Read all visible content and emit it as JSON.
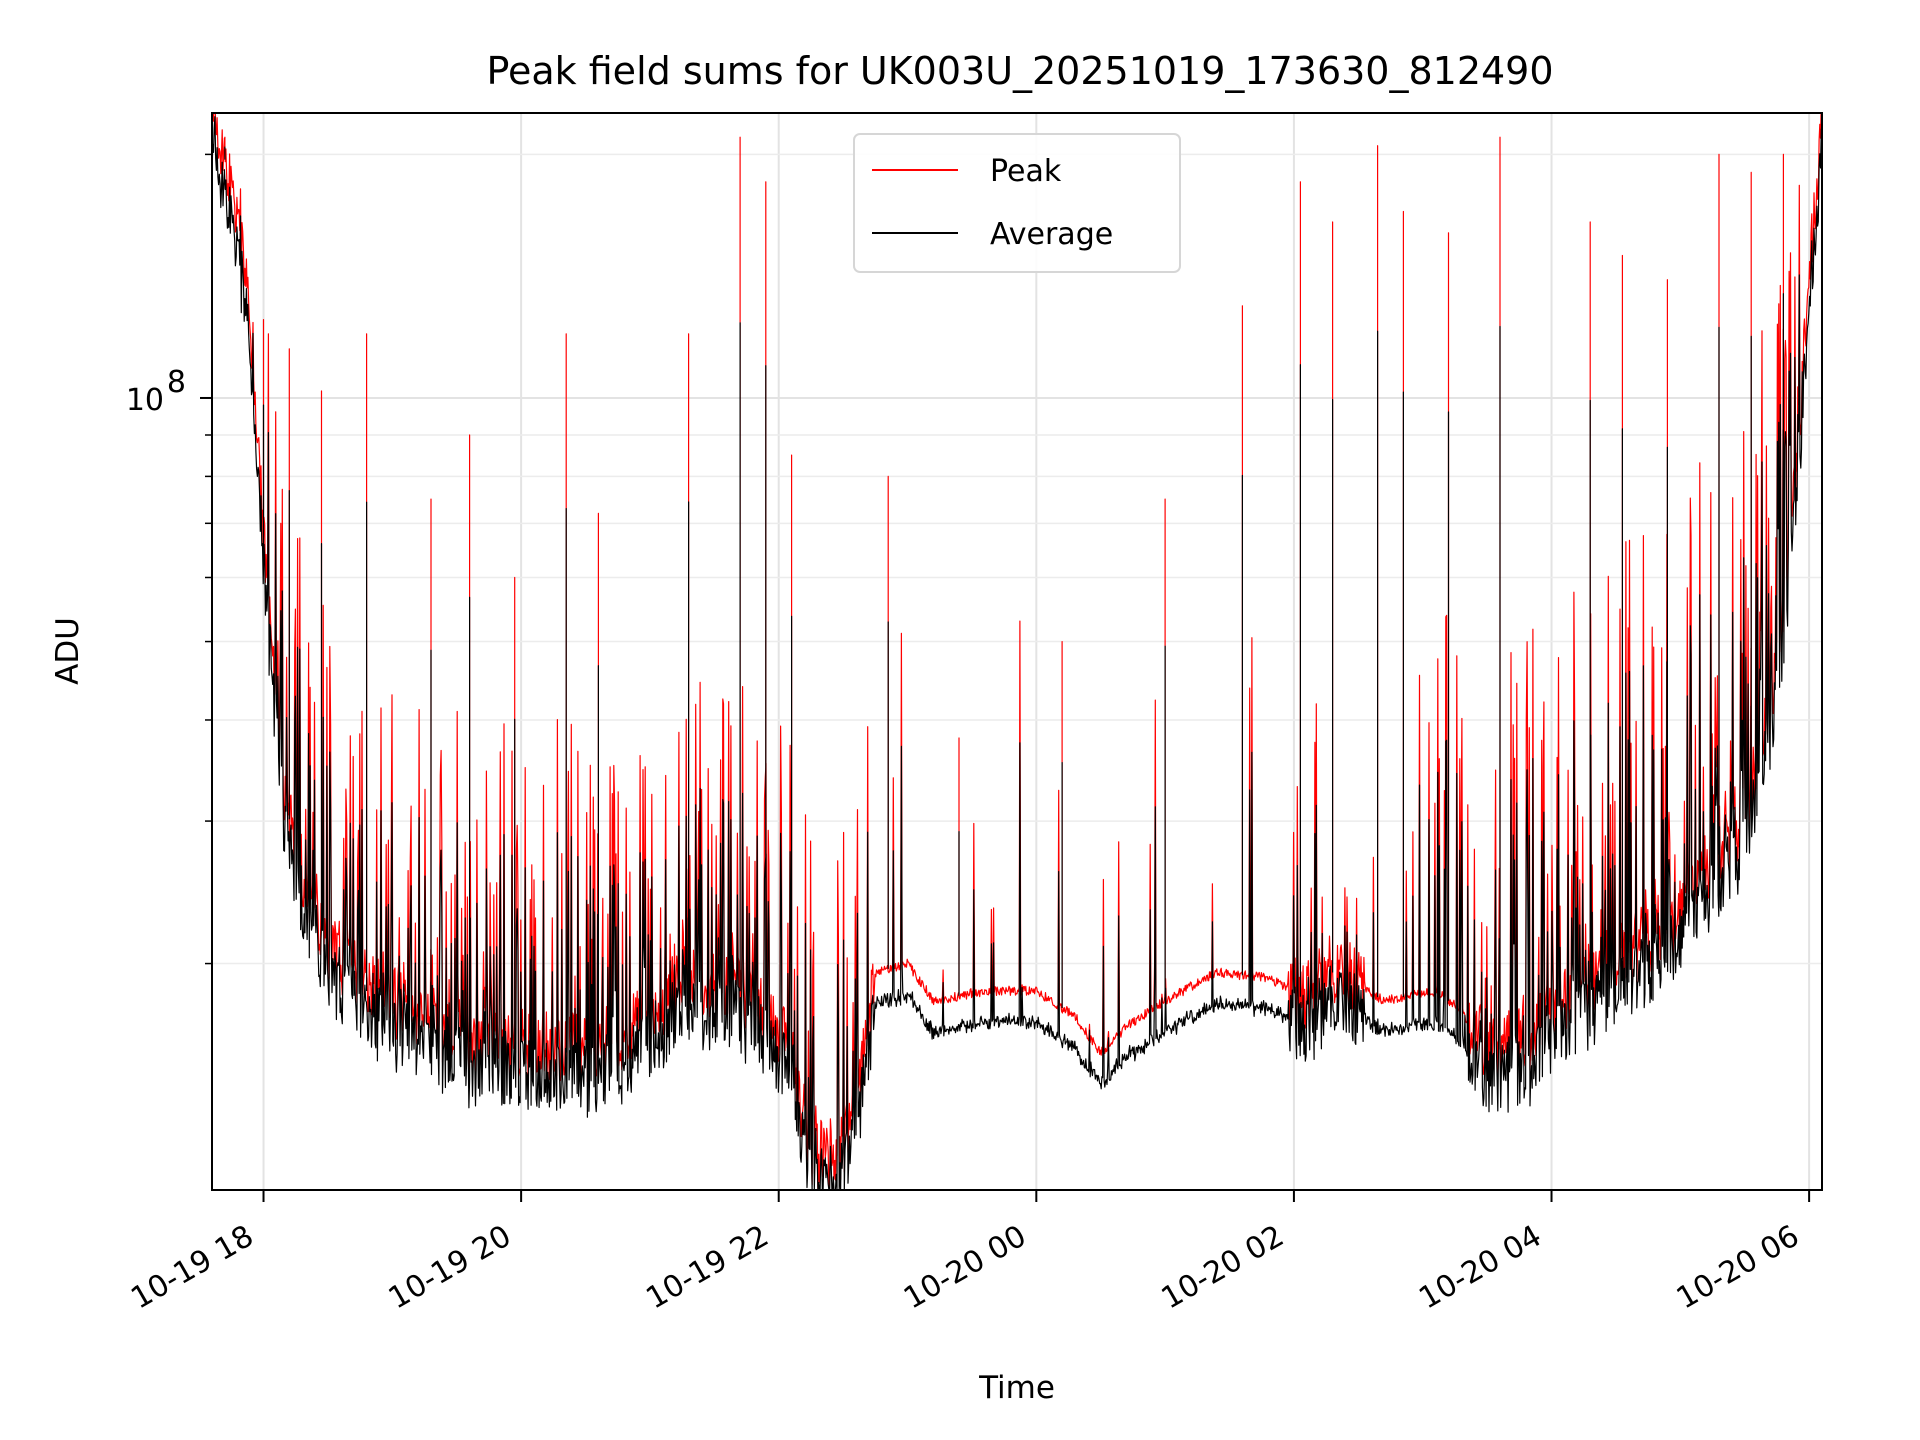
{
  "chart_data": {
    "type": "line",
    "title": "Peak field sums for UK003U_20251019_173630_812490",
    "xlabel": "Time",
    "ylabel": "ADU",
    "yscale": "log",
    "ylim": [
      10500000,
      225000000
    ],
    "xlim_hours_since_1019_1700": [
      0.6,
      13.1
    ],
    "x_ticks": [
      {
        "label": "10-19 18",
        "hours": 1
      },
      {
        "label": "10-19 20",
        "hours": 3
      },
      {
        "label": "10-19 22",
        "hours": 5
      },
      {
        "label": "10-20 00",
        "hours": 7
      },
      {
        "label": "10-20 02",
        "hours": 9
      },
      {
        "label": "10-20 04",
        "hours": 11
      },
      {
        "label": "10-20 06",
        "hours": 13
      }
    ],
    "y_ticks": [
      {
        "label": "10",
        "exponent": "8",
        "value": 100000000
      }
    ],
    "grid": true,
    "legend": {
      "position": "top-center",
      "entries": [
        {
          "name": "Peak",
          "color": "#ff0000"
        },
        {
          "name": "Average",
          "color": "#000000"
        }
      ]
    },
    "series": [
      {
        "name": "Peak",
        "color": "#ff0000",
        "baseline_points": [
          [
            0.6,
            220000000
          ],
          [
            0.68,
            205000000
          ],
          [
            0.76,
            175000000
          ],
          [
            0.84,
            145000000
          ],
          [
            0.92,
            115000000
          ],
          [
            1.0,
            65000000
          ],
          [
            1.08,
            45000000
          ],
          [
            1.16,
            32000000
          ],
          [
            1.3,
            26000000
          ],
          [
            1.5,
            21000000
          ],
          [
            1.8,
            18500000
          ],
          [
            2.2,
            17000000
          ],
          [
            2.6,
            16000000
          ],
          [
            3.0,
            15700000
          ],
          [
            3.4,
            15500000
          ],
          [
            3.8,
            16000000
          ],
          [
            4.2,
            18500000
          ],
          [
            4.6,
            19000000
          ],
          [
            4.9,
            17500000
          ],
          [
            5.1,
            15500000
          ],
          [
            5.25,
            11500000
          ],
          [
            5.45,
            11500000
          ],
          [
            5.6,
            13000000
          ],
          [
            5.75,
            19500000
          ],
          [
            6.0,
            20000000
          ],
          [
            6.2,
            18000000
          ],
          [
            6.6,
            18500000
          ],
          [
            7.0,
            18500000
          ],
          [
            7.3,
            17200000
          ],
          [
            7.5,
            15500000
          ],
          [
            7.7,
            16700000
          ],
          [
            8.0,
            18000000
          ],
          [
            8.4,
            19500000
          ],
          [
            8.8,
            19200000
          ],
          [
            9.1,
            18000000
          ],
          [
            9.3,
            19500000
          ],
          [
            9.7,
            18000000
          ],
          [
            10.1,
            18500000
          ],
          [
            10.3,
            17500000
          ],
          [
            10.5,
            15500000
          ],
          [
            10.8,
            16000000
          ],
          [
            11.1,
            18000000
          ],
          [
            11.5,
            20000000
          ],
          [
            11.9,
            22000000
          ],
          [
            12.2,
            26000000
          ],
          [
            12.5,
            30000000
          ],
          [
            12.75,
            45000000
          ],
          [
            12.9,
            80000000
          ],
          [
            13.0,
            140000000
          ],
          [
            13.1,
            220000000
          ]
        ],
        "spikes": [
          [
            0.7,
            210000000
          ],
          [
            0.82,
            160000000
          ],
          [
            1.0,
            125000000
          ],
          [
            1.2,
            115000000
          ],
          [
            1.45,
            102000000
          ],
          [
            1.8,
            120000000
          ],
          [
            2.3,
            75000000
          ],
          [
            2.6,
            90000000
          ],
          [
            2.95,
            60000000
          ],
          [
            3.35,
            120000000
          ],
          [
            3.6,
            72000000
          ],
          [
            4.3,
            120000000
          ],
          [
            4.7,
            210000000
          ],
          [
            4.9,
            185000000
          ],
          [
            5.1,
            85000000
          ],
          [
            5.85,
            80000000
          ],
          [
            6.4,
            38000000
          ],
          [
            7.2,
            50000000
          ],
          [
            8.0,
            75000000
          ],
          [
            8.6,
            130000000
          ],
          [
            9.05,
            185000000
          ],
          [
            9.3,
            165000000
          ],
          [
            9.65,
            205000000
          ],
          [
            9.85,
            170000000
          ],
          [
            10.2,
            160000000
          ],
          [
            10.6,
            210000000
          ],
          [
            11.3,
            165000000
          ],
          [
            11.55,
            150000000
          ],
          [
            11.9,
            140000000
          ],
          [
            12.3,
            200000000
          ],
          [
            12.55,
            190000000
          ],
          [
            12.8,
            200000000
          ]
        ]
      },
      {
        "name": "Average",
        "color": "#000000",
        "baseline_ratio": 0.93,
        "spike_ratio": 0.55
      }
    ]
  }
}
